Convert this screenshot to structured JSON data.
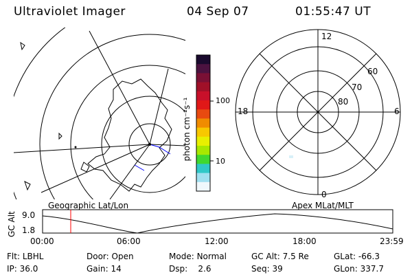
{
  "header": {
    "title": "Ultraviolet Imager",
    "date": "04 Sep 07",
    "time": "01:55:47 UT"
  },
  "colorbar": {
    "unit_label": "photon cm⁻²s⁻¹",
    "tick_100": "100",
    "tick_10": "10",
    "colors": [
      "#1a0a2e",
      "#4b1240",
      "#7a1035",
      "#a01028",
      "#c8102a",
      "#e01818",
      "#e84a10",
      "#f08c00",
      "#f8c800",
      "#e8f000",
      "#a8e800",
      "#40d830",
      "#30c8c8",
      "#a0e0f0",
      "#f0f8fc"
    ]
  },
  "panels": {
    "geographic_label": "Geographic Lat/Lon",
    "apex_label": "Apex MLat/MLT"
  },
  "polar": {
    "mlt_12": "12",
    "mlt_18": "18",
    "mlt_6": "6",
    "mlt_0": "0",
    "lat_60": "60",
    "lat_70": "70",
    "lat_80": "80"
  },
  "orbit": {
    "axis_label": "GC Alt",
    "y_max": "9.0",
    "y_min": "1.8",
    "x_ticks": [
      "00:00",
      "06:00",
      "12:00",
      "18:00",
      "23:59"
    ],
    "current_time_hours": 1.93
  },
  "info": {
    "row1": [
      {
        "label": "Flt:",
        "value": "LBHL"
      },
      {
        "label": "Door:",
        "value": "Open"
      },
      {
        "label": "Mode:",
        "value": "Normal"
      },
      {
        "label": "GC Alt:",
        "value": "7.5 Re"
      },
      {
        "label": "GLat:",
        "value": "-66.3"
      }
    ],
    "row2": [
      {
        "label": "IP:",
        "value": "36.0"
      },
      {
        "label": "Gain:",
        "value": "14"
      },
      {
        "label": "Dsp:",
        "value": "2.6"
      },
      {
        "label": "Seq:",
        "value": "39"
      },
      {
        "label": "GLon:",
        "value": "337.7"
      }
    ]
  }
}
